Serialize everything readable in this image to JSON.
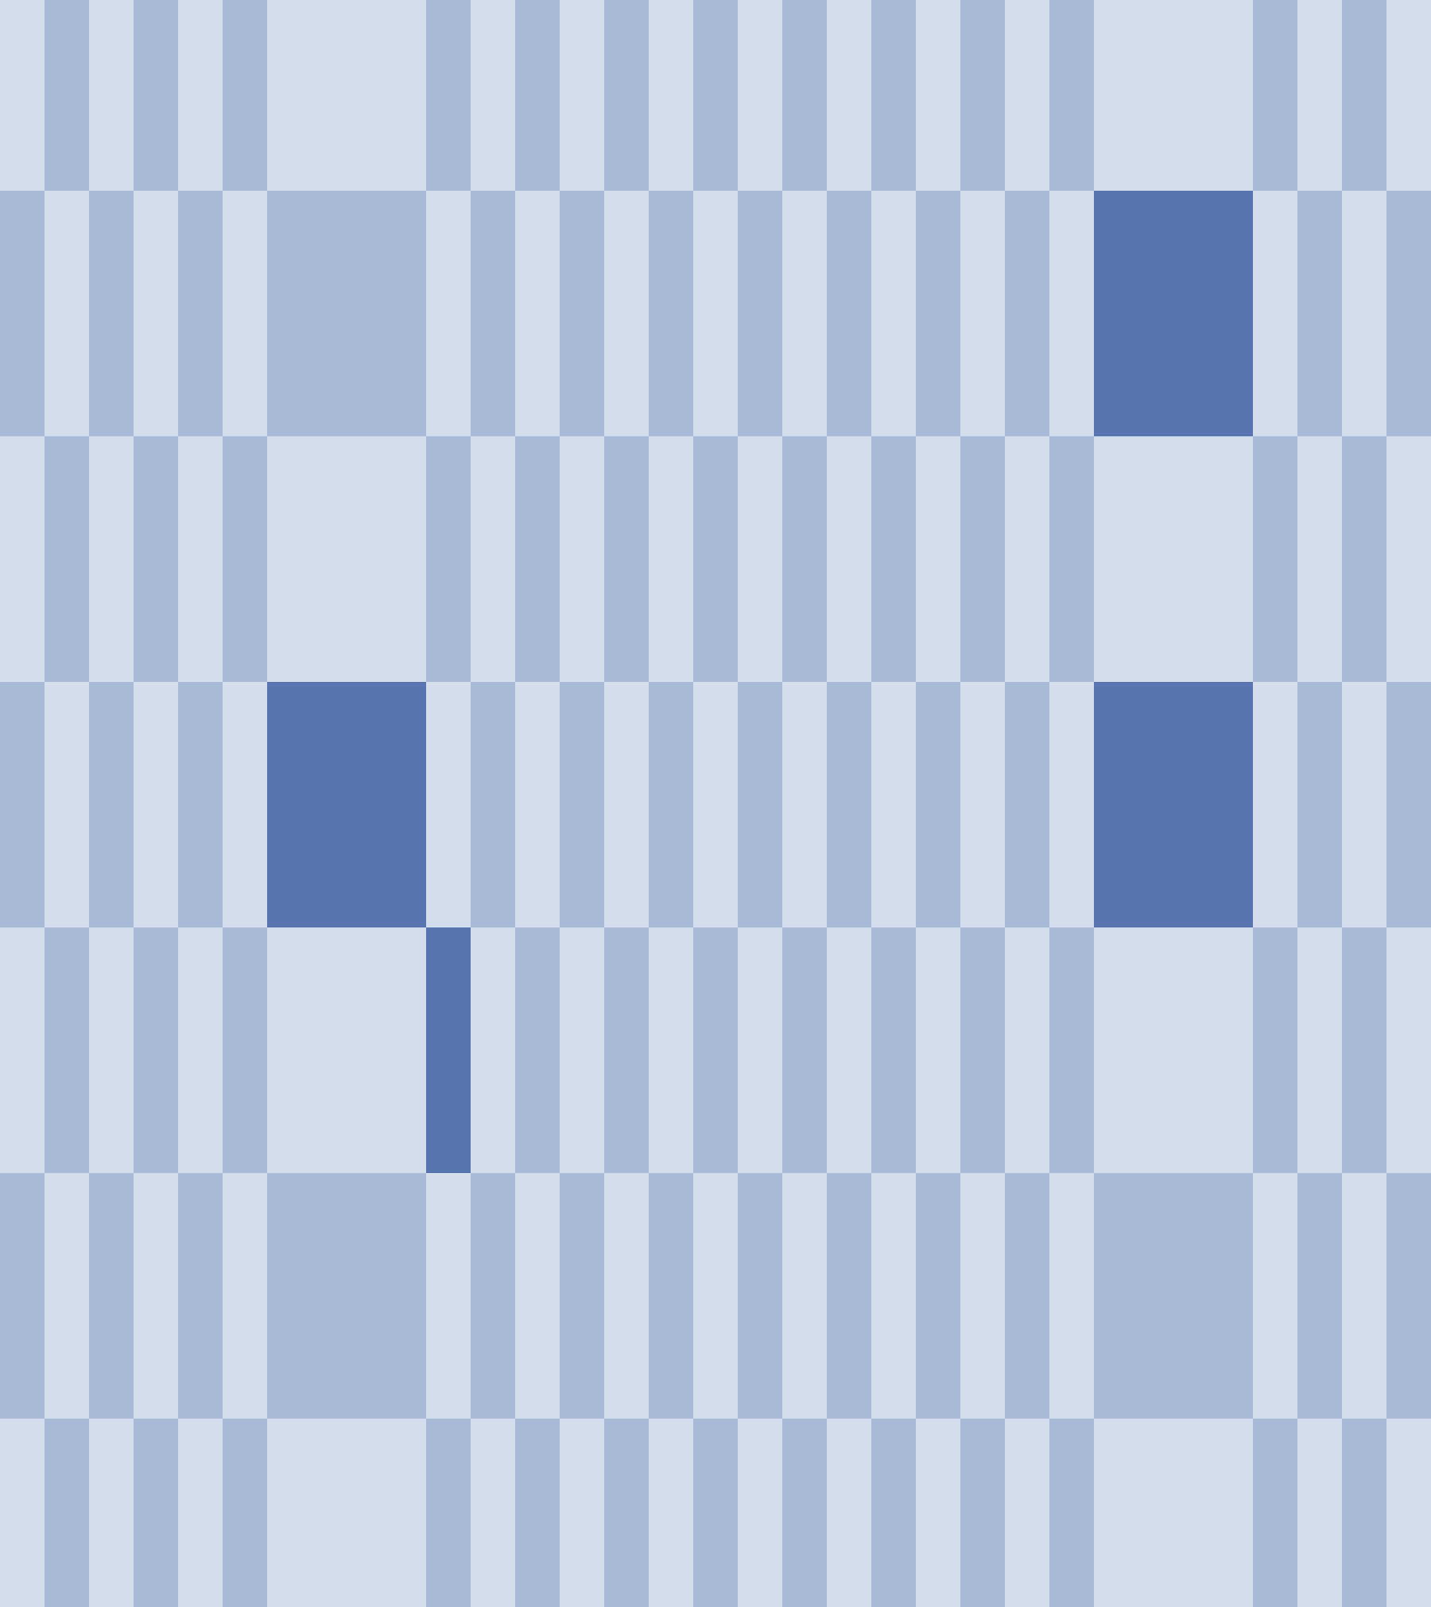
{
  "pattern": {
    "colors": {
      "light": "#d4ddec",
      "medium": "#a9bad8",
      "dark": "#5875b2"
    },
    "columns": 27,
    "rows": 7,
    "wide_columns": [
      6,
      22
    ],
    "highlighted_cells": [
      {
        "row": 1,
        "col": 22
      },
      {
        "row": 3,
        "col": 6
      },
      {
        "row": 3,
        "col": 22
      },
      {
        "row": 4,
        "col": 7
      }
    ]
  }
}
